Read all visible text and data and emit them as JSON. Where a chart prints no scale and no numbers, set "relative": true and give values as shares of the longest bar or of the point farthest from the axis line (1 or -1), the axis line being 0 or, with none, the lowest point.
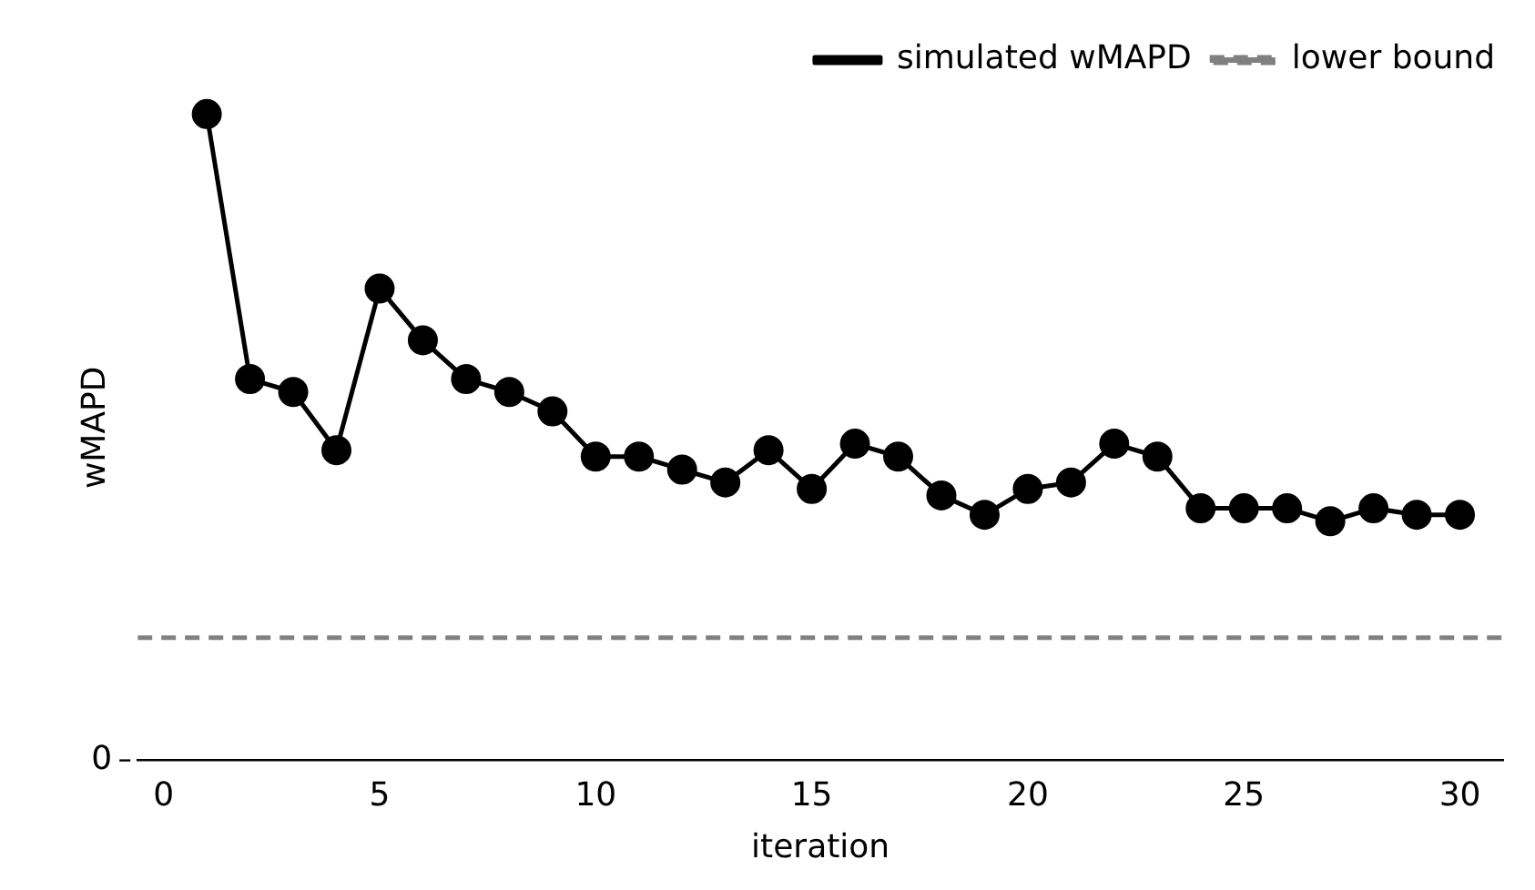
{
  "chart_data": {
    "type": "line",
    "relative": true,
    "xlabel": "iteration",
    "ylabel": "wMAPD",
    "xlim": [
      -0.6,
      31
    ],
    "xticks": [
      0,
      5,
      10,
      15,
      20,
      25,
      30
    ],
    "marker": "circle",
    "line_style": "solid",
    "legend": "top right",
    "x": [
      1,
      2,
      3,
      4,
      5,
      6,
      7,
      8,
      9,
      10,
      11,
      12,
      13,
      14,
      15,
      16,
      17,
      18,
      19,
      20,
      21,
      22,
      23,
      24,
      25,
      26,
      27,
      28,
      29,
      30
    ],
    "series": [
      {
        "name": "simulated wMAPD",
        "color": "#000000",
        "values": [
          1,
          0.59,
          0.57,
          0.48,
          0.73,
          0.65,
          0.59,
          0.57,
          0.54,
          0.47,
          0.47,
          0.45,
          0.43,
          0.48,
          0.42,
          0.49,
          0.47,
          0.41,
          0.38,
          0.42,
          0.43,
          0.49,
          0.47,
          0.39,
          0.39,
          0.39,
          0.37,
          0.39,
          0.38,
          0.38
        ]
      }
    ],
    "ref_lines": [
      {
        "axis": "y",
        "value": 0.19,
        "label": "lower bound",
        "color": "#808080",
        "line_style": "dashed"
      }
    ],
    "annotations": [
      "0"
    ]
  }
}
